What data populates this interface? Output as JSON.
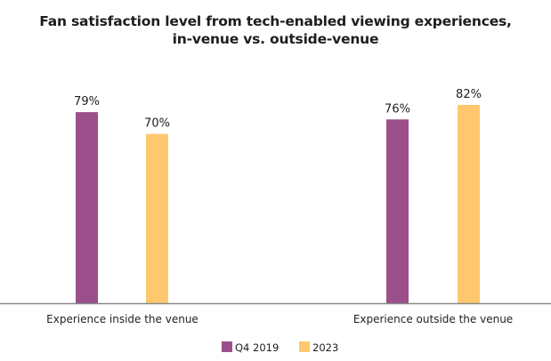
{
  "chart_data": {
    "type": "bar",
    "title_lines": [
      "Fan satisfaction level from tech-enabled viewing experiences,",
      "in-venue vs. outside-venue"
    ],
    "categories": [
      "Experience inside the venue",
      "Experience outside the venue"
    ],
    "series": [
      {
        "name": "Q4 2019",
        "values": [
          79,
          76
        ],
        "labels": [
          "79%",
          "76%"
        ],
        "color": "#9b4f8b"
      },
      {
        "name": "2023",
        "values": [
          70,
          82
        ],
        "labels": [
          "70%",
          "82%"
        ],
        "color": "#ffc86e"
      }
    ],
    "xlabel": "",
    "ylabel": "",
    "ylim": [
      0,
      100
    ],
    "grid": false,
    "legend": "bottom-center",
    "axis_color": "#888888"
  }
}
